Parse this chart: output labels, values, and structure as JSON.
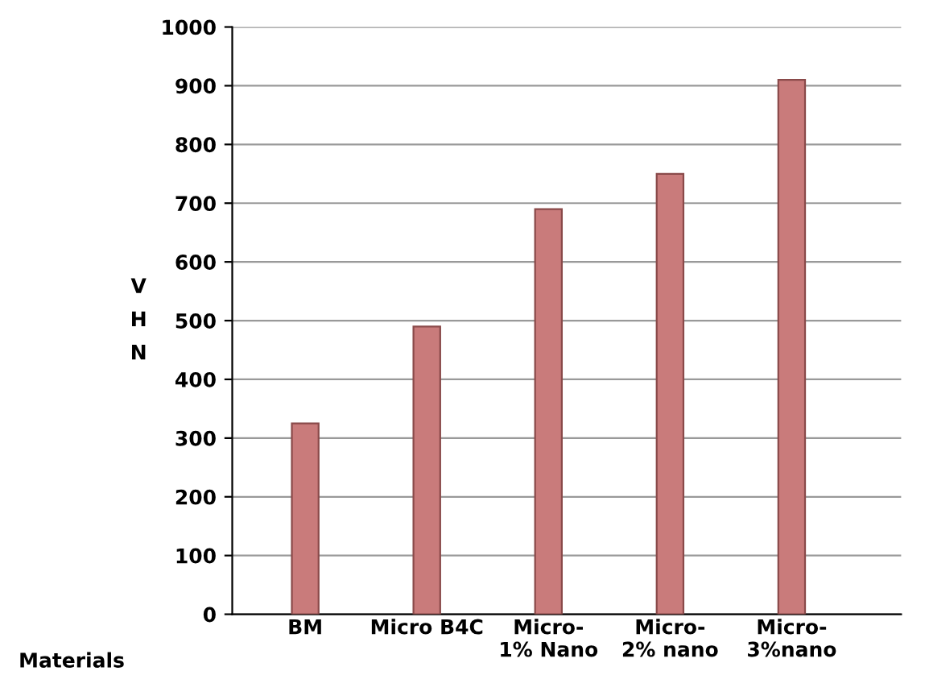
{
  "chart_data": {
    "type": "bar",
    "categories": [
      "BM",
      "Micro B4C",
      "Micro-\n1% Nano",
      "Micro-\n2% nano",
      "Micro-\n3%nano"
    ],
    "values": [
      325,
      490,
      690,
      750,
      910
    ],
    "color": "#c97b7b",
    "xlabel": "Materials",
    "ylabel": "VHN",
    "ylim": [
      0,
      1000
    ],
    "yticks": [
      0,
      100,
      200,
      300,
      400,
      500,
      600,
      700,
      800,
      900,
      1000
    ],
    "grid": "y"
  }
}
